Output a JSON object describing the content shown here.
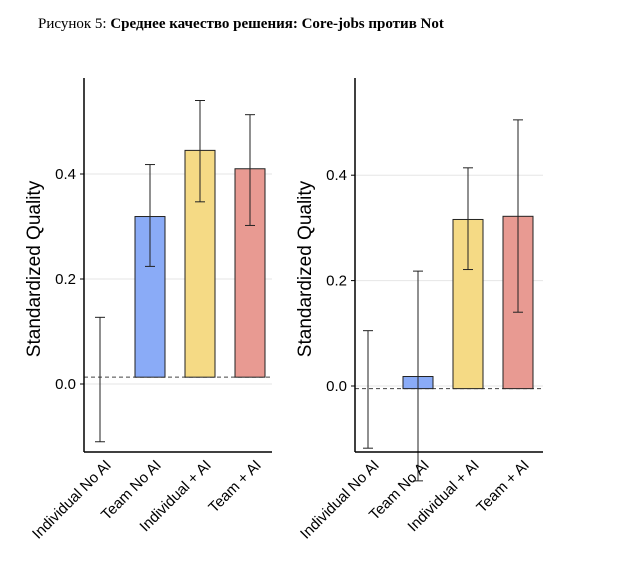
{
  "caption": {
    "lead": "Рисунок 5:",
    "title": "Среднее качество решения: Core-jobs против Not"
  },
  "colors": {
    "Individual No AI": "#ffffff",
    "Team No AI": "#8aabf7",
    "Individual + AI": "#f5da85",
    "Team + AI": "#e89a92"
  },
  "chart_data": [
    {
      "type": "bar",
      "ylabel": "Standardized Quality",
      "xlabel": "",
      "ylim": [
        -0.13,
        0.58
      ],
      "yticks": [
        0.0,
        0.2,
        0.4
      ],
      "ytick_labels": [
        "0.0",
        "0.2",
        "0.4"
      ],
      "grid": true,
      "reference_line": 0.013,
      "categories": [
        "Individual No AI",
        "Team No AI",
        "Individual + AI",
        "Team + AI"
      ],
      "values": [
        0.0,
        0.319,
        0.445,
        0.41
      ],
      "err_low": [
        -0.11,
        0.224,
        0.347,
        0.302
      ],
      "err_high": [
        0.127,
        0.418,
        0.54,
        0.513
      ]
    },
    {
      "type": "bar",
      "ylabel": "Standardized Quality",
      "xlabel": "",
      "ylim": [
        -0.13,
        0.58
      ],
      "yticks": [
        0.0,
        0.2,
        0.4
      ],
      "ytick_labels": [
        "0.0",
        "0.2",
        "0.4"
      ],
      "grid": true,
      "reference_line": -0.005,
      "categories": [
        "Individual No AI",
        "Team No AI",
        "Individual + AI",
        "Team + AI"
      ],
      "values": [
        0.0,
        0.018,
        0.316,
        0.322
      ],
      "err_low": [
        -0.118,
        -0.18,
        0.221,
        0.14
      ],
      "err_high": [
        0.105,
        0.218,
        0.414,
        0.505
      ]
    }
  ]
}
